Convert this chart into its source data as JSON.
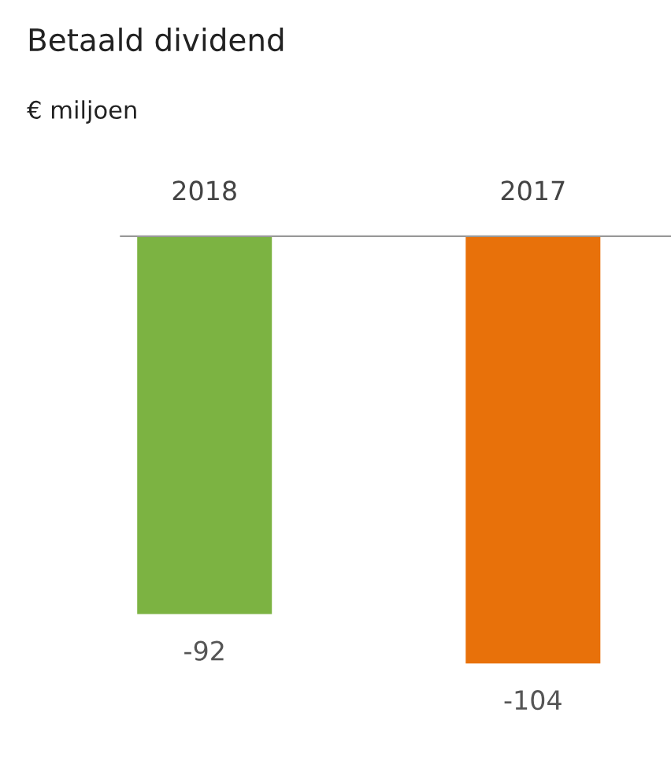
{
  "chart_data": {
    "type": "bar",
    "title": "Betaald dividend",
    "subtitle": "€ miljoen",
    "categories": [
      "2018",
      "2017"
    ],
    "values": [
      -92,
      -104
    ],
    "colors": [
      "#7cb342",
      "#e8710a"
    ],
    "data_labels": true
  }
}
